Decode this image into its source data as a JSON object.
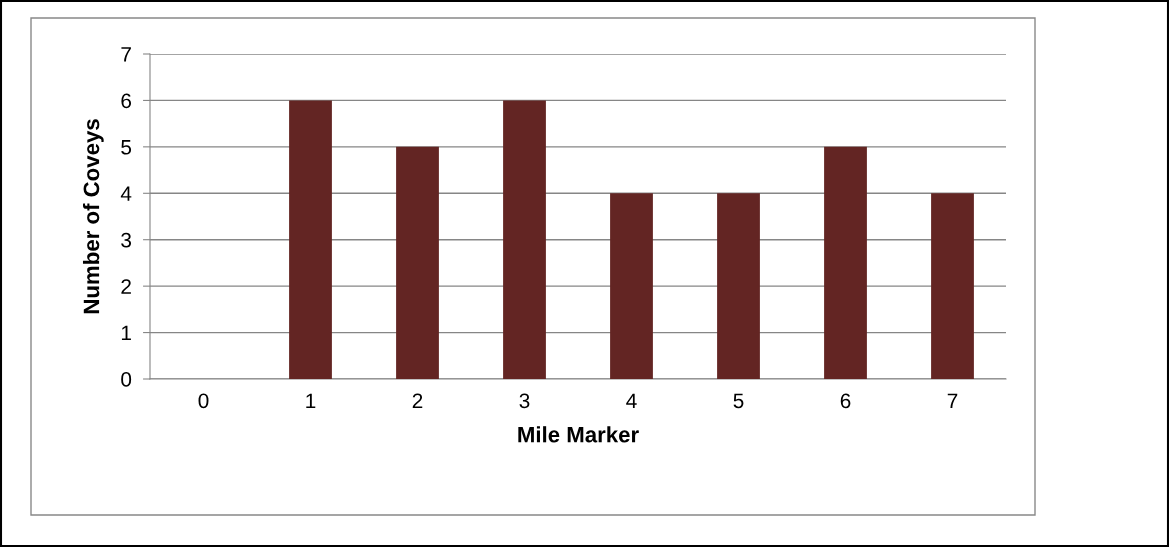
{
  "chart_data": {
    "type": "bar",
    "xlabel": "Mile Marker",
    "ylabel": "Number of Coveys",
    "categories": [
      "0",
      "1",
      "2",
      "3",
      "4",
      "5",
      "6",
      "7"
    ],
    "values": [
      0,
      6,
      5,
      6,
      4,
      4,
      5,
      4
    ],
    "color": "#632523",
    "ylim": [
      0,
      7
    ],
    "yticks": [
      0,
      1,
      2,
      3,
      4,
      5,
      6,
      7
    ],
    "grid": "y"
  }
}
